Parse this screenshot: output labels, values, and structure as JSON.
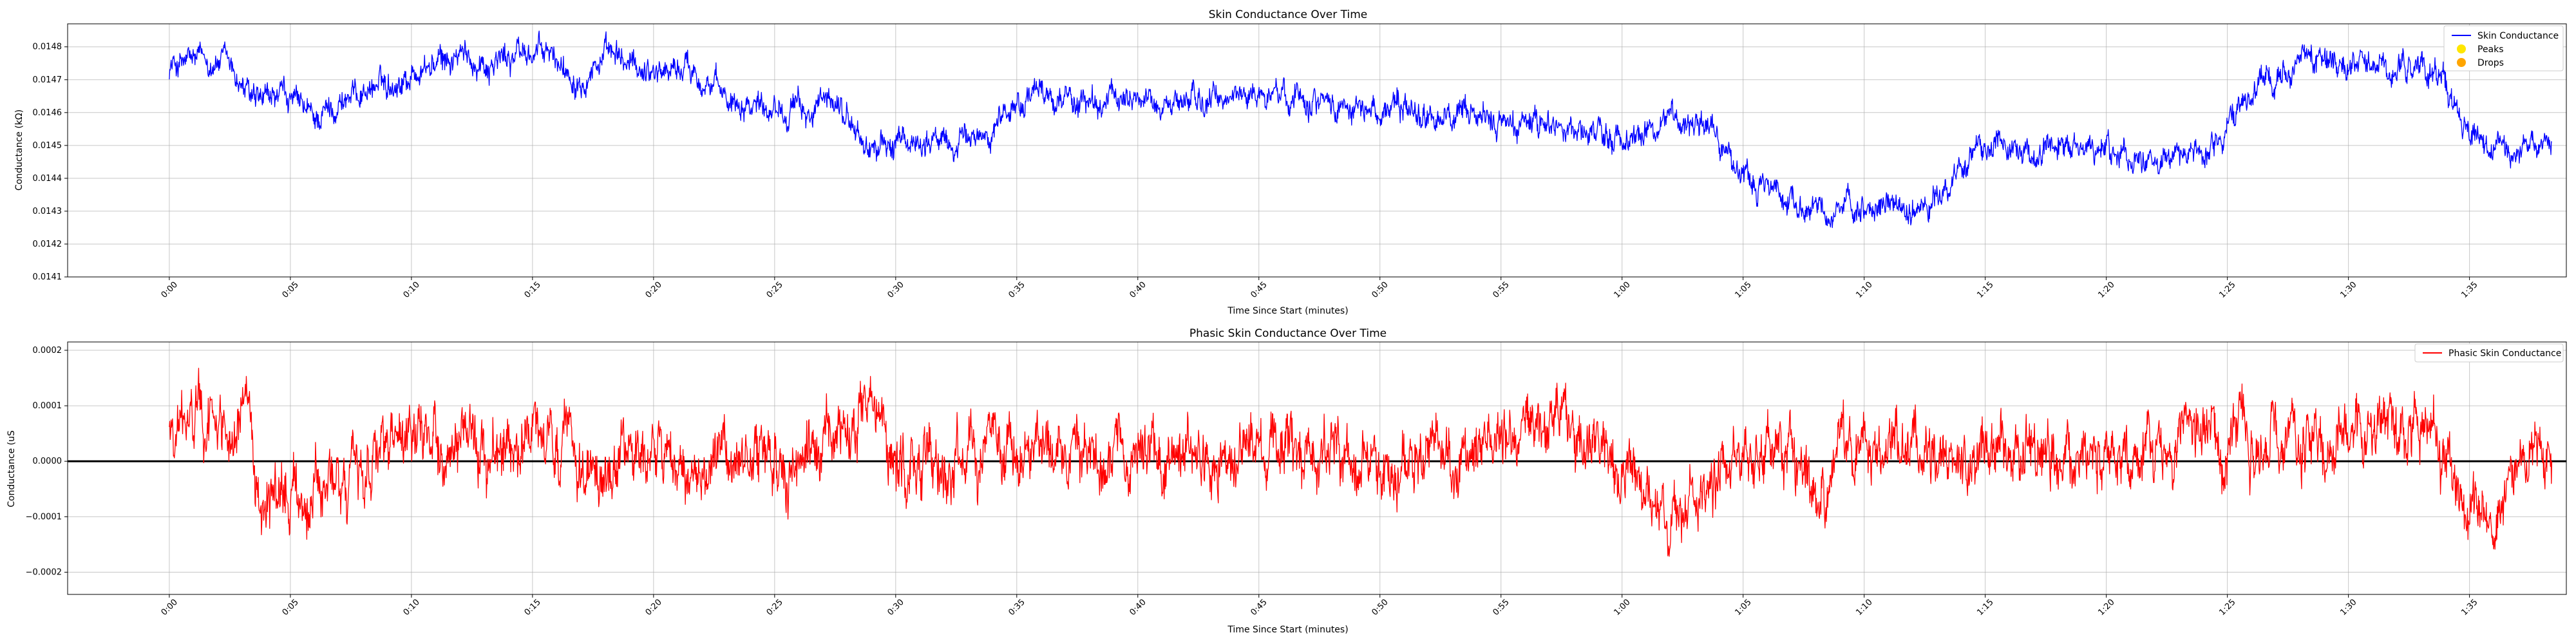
{
  "chart_data": [
    {
      "type": "line",
      "title": "Skin Conductance Over Time",
      "xlabel": "Time Since Start (minutes)",
      "ylabel": "Conductance (kΩ)",
      "xlim": [
        -0.07,
        1.65
      ],
      "ylim": [
        0.0141,
        0.01487
      ],
      "x_ticks": [
        "0:00",
        "0:05",
        "0:10",
        "0:15",
        "0:20",
        "0:25",
        "0:30",
        "0:35",
        "0:40",
        "0:45",
        "0:50",
        "0:55",
        "1:00",
        "1:05",
        "1:10",
        "1:15",
        "1:20",
        "1:25",
        "1:30",
        "1:35"
      ],
      "y_ticks": [
        "0.0141",
        "0.0142",
        "0.0143",
        "0.0144",
        "0.0145",
        "0.0146",
        "0.0147",
        "0.0148"
      ],
      "y_tick_values": [
        0.0141,
        0.0142,
        0.0143,
        0.0144,
        0.0145,
        0.0146,
        0.0147,
        0.0148
      ],
      "grid": true,
      "legend_position": "top-right",
      "x_range": [
        0,
        1.64
      ],
      "series": [
        {
          "name": "Skin Conductance",
          "color": "#0000ff",
          "noise": 4.5e-05,
          "x": [
            0.0,
            0.02,
            0.04,
            0.05,
            0.06,
            0.08,
            0.1,
            0.12,
            0.14,
            0.16,
            0.18,
            0.2,
            0.22,
            0.24,
            0.26,
            0.28,
            0.3,
            0.32,
            0.34,
            0.36,
            0.38,
            0.4,
            0.42,
            0.44,
            0.46,
            0.48,
            0.5,
            0.52,
            0.54,
            0.56,
            0.58,
            0.6,
            0.62,
            0.64,
            0.66,
            0.68,
            0.7,
            0.72,
            0.74,
            0.76,
            0.78,
            0.8,
            0.82,
            0.84,
            0.86,
            0.88,
            0.9,
            0.92,
            0.94,
            0.96,
            0.98,
            1.0,
            1.02,
            1.04,
            1.06,
            1.08,
            1.1,
            1.12,
            1.14,
            1.16,
            1.18,
            1.2,
            1.22,
            1.24,
            1.26,
            1.28,
            1.3,
            1.32,
            1.34,
            1.36,
            1.38,
            1.4,
            1.42,
            1.44,
            1.46,
            1.48,
            1.5,
            1.52,
            1.54,
            1.56,
            1.58,
            1.6,
            1.62,
            1.64
          ],
          "values": [
            0.01474,
            0.01476,
            0.01475,
            0.01468,
            0.01462,
            0.01465,
            0.01458,
            0.01464,
            0.01468,
            0.0147,
            0.01474,
            0.01477,
            0.01475,
            0.01478,
            0.01478,
            0.01471,
            0.01477,
            0.01474,
            0.01473,
            0.01474,
            0.01465,
            0.01464,
            0.01462,
            0.0146,
            0.01463,
            0.01449,
            0.0145,
            0.01452,
            0.0145,
            0.01453,
            0.01462,
            0.01466,
            0.01464,
            0.01462,
            0.01466,
            0.01462,
            0.01464,
            0.01463,
            0.01466,
            0.01465,
            0.01466,
            0.01463,
            0.01461,
            0.01461,
            0.0146,
            0.01458,
            0.01458,
            0.01456,
            0.01457,
            0.01456,
            0.01453,
            0.01452,
            0.01456,
            0.01459,
            0.01458,
            0.01441,
            0.01437,
            0.01433,
            0.0143,
            0.01428,
            0.01432,
            0.0143,
            0.01435,
            0.01447,
            0.0145,
            0.01448,
            0.01447,
            0.01448,
            0.01448,
            0.01447,
            0.01447,
            0.01447,
            0.01456,
            0.0147,
            0.01476,
            0.01477,
            0.01472,
            0.01474,
            0.01473,
            0.01474,
            0.01455,
            0.01446,
            0.01449,
            0.01453
          ]
        },
        {
          "name": "Peaks",
          "color": "#ffe600",
          "marker": "circle",
          "values": []
        },
        {
          "name": "Drops",
          "color": "#ffa500",
          "marker": "circle",
          "values": []
        }
      ]
    },
    {
      "type": "line",
      "title": "Phasic Skin Conductance Over Time",
      "xlabel": "Time Since Start (minutes)",
      "ylabel": "Conductance (uS",
      "xlim": [
        -0.07,
        1.65
      ],
      "ylim": [
        -0.00024,
        0.000215
      ],
      "x_ticks": [
        "0:00",
        "0:05",
        "0:10",
        "0:15",
        "0:20",
        "0:25",
        "0:30",
        "0:35",
        "0:40",
        "0:45",
        "0:50",
        "0:55",
        "1:00",
        "1:05",
        "1:10",
        "1:15",
        "1:20",
        "1:25",
        "1:30",
        "1:35"
      ],
      "y_ticks": [
        "−0.0002",
        "−0.0001",
        "0.0000",
        "0.0001",
        "0.0002"
      ],
      "y_tick_values": [
        -0.0002,
        -0.0001,
        0.0,
        0.0001,
        0.0002
      ],
      "grid": true,
      "zero_line": true,
      "legend_position": "top-right",
      "x_range": [
        0,
        1.64
      ],
      "series": [
        {
          "name": "Phasic Skin Conductance",
          "color": "#ff0000",
          "noise": 6e-05,
          "x": [
            0.0,
            0.02,
            0.04,
            0.05,
            0.06,
            0.08,
            0.1,
            0.12,
            0.14,
            0.16,
            0.18,
            0.2,
            0.22,
            0.24,
            0.26,
            0.28,
            0.3,
            0.32,
            0.34,
            0.36,
            0.38,
            0.4,
            0.42,
            0.44,
            0.46,
            0.48,
            0.5,
            0.52,
            0.54,
            0.56,
            0.58,
            0.6,
            0.62,
            0.64,
            0.66,
            0.68,
            0.7,
            0.72,
            0.74,
            0.76,
            0.78,
            0.8,
            0.82,
            0.84,
            0.86,
            0.88,
            0.9,
            0.92,
            0.94,
            0.96,
            0.98,
            1.0,
            1.02,
            1.04,
            1.06,
            1.08,
            1.1,
            1.12,
            1.14,
            1.16,
            1.18,
            1.2,
            1.22,
            1.24,
            1.26,
            1.28,
            1.3,
            1.32,
            1.34,
            1.36,
            1.38,
            1.4,
            1.42,
            1.44,
            1.46,
            1.48,
            1.5,
            1.52,
            1.54,
            1.56,
            1.58,
            1.6,
            1.62,
            1.64
          ],
          "values": [
            6e-05,
            8e-05,
            7e-05,
            9e-05,
            -5e-05,
            -7e-05,
            -6e-05,
            -4e-05,
            2e-05,
            1e-05,
            3e-05,
            2e-05,
            4e-05,
            3e-05,
            2e-05,
            1e-05,
            -3e-05,
            2e-05,
            1e-05,
            -4e-05,
            -2e-05,
            3e-05,
            -2e-05,
            1e-05,
            4e-05,
            6e-05,
            2e-05,
            1e-05,
            -1e-05,
            3e-05,
            1e-05,
            2e-05,
            1e-05,
            -1e-05,
            3e-05,
            1e-05,
            2e-05,
            1e-05,
            0.0,
            2e-05,
            1e-05,
            2e-05,
            1e-05,
            -1e-05,
            2e-05,
            1e-05,
            3e-05,
            5e-05,
            8e-05,
            9e-05,
            2e-05,
            -4e-05,
            -8e-05,
            -0.0001,
            -3e-05,
            1e-05,
            2e-05,
            -1e-05,
            -3e-05,
            2e-05,
            3e-05,
            2e-05,
            0.0,
            1e-05,
            2e-05,
            1e-05,
            0.0,
            2e-05,
            1e-05,
            2e-05,
            3e-05,
            5e-05,
            4e-05,
            3e-05,
            6e-05,
            4e-05,
            4e-05,
            7e-05,
            6e-05,
            5e-05,
            -8e-05,
            -0.0001,
            3e-05,
            2e-05
          ]
        }
      ]
    }
  ]
}
